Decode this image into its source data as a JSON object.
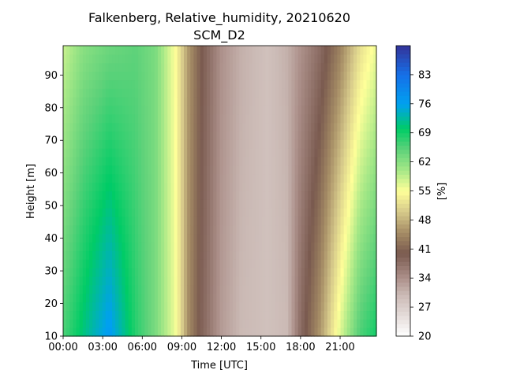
{
  "chart_data": {
    "type": "heatmap",
    "title_line1": "Falkenberg, Relative_humidity, 20210620",
    "title_line2": "SCM_D2",
    "xlabel": "Time [UTC]",
    "ylabel": "Height [m]",
    "colorbar_label": "[%]",
    "x_ticks": [
      "00:00",
      "03:00",
      "06:00",
      "09:00",
      "12:00",
      "15:00",
      "18:00",
      "21:00"
    ],
    "x_tick_hours": [
      0,
      3,
      6,
      9,
      12,
      15,
      18,
      21
    ],
    "xlim_hours": [
      0,
      23.75
    ],
    "y_ticks": [
      10,
      20,
      30,
      40,
      50,
      60,
      70,
      80,
      90
    ],
    "ylim": [
      10,
      99
    ],
    "colorbar_ticks": [
      20,
      27,
      34,
      41,
      48,
      55,
      62,
      69,
      76,
      83
    ],
    "colorbar_range": [
      20,
      90
    ],
    "colormap": [
      {
        "v": 20,
        "c": "#ffffff"
      },
      {
        "v": 30,
        "c": "#cbbab5"
      },
      {
        "v": 34,
        "c": "#ad918b"
      },
      {
        "v": 40,
        "c": "#7a5a4f"
      },
      {
        "v": 45,
        "c": "#a58c65"
      },
      {
        "v": 50,
        "c": "#d6c98a"
      },
      {
        "v": 55,
        "c": "#ffff99"
      },
      {
        "v": 60,
        "c": "#a6e887"
      },
      {
        "v": 65,
        "c": "#5ed27a"
      },
      {
        "v": 70,
        "c": "#00cc66"
      },
      {
        "v": 76,
        "c": "#00a0f0"
      },
      {
        "v": 83,
        "c": "#1670e8"
      },
      {
        "v": 90,
        "c": "#333399"
      }
    ],
    "rh_profile_by_hour": [
      {
        "hour": 0,
        "rh_at_10m": 66,
        "rh_at_99m": 58
      },
      {
        "hour": 1.5,
        "rh_at_10m": 71,
        "rh_at_99m": 62
      },
      {
        "hour": 3.5,
        "rh_at_10m": 77,
        "rh_at_99m": 64
      },
      {
        "hour": 5.5,
        "rh_at_10m": 68,
        "rh_at_99m": 65
      },
      {
        "hour": 7,
        "rh_at_10m": 63,
        "rh_at_99m": 63
      },
      {
        "hour": 8.5,
        "rh_at_10m": 56,
        "rh_at_99m": 55
      },
      {
        "hour": 9.5,
        "rh_at_10m": 45,
        "rh_at_99m": 46
      },
      {
        "hour": 10.5,
        "rh_at_10m": 39,
        "rh_at_99m": 40
      },
      {
        "hour": 12,
        "rh_at_10m": 33,
        "rh_at_99m": 34
      },
      {
        "hour": 13.5,
        "rh_at_10m": 30,
        "rh_at_99m": 31
      },
      {
        "hour": 15.5,
        "rh_at_10m": 29,
        "rh_at_99m": 29
      },
      {
        "hour": 17,
        "rh_at_10m": 30,
        "rh_at_99m": 31
      },
      {
        "hour": 18,
        "rh_at_10m": 38,
        "rh_at_99m": 34
      },
      {
        "hour": 19.5,
        "rh_at_10m": 46,
        "rh_at_99m": 38
      },
      {
        "hour": 21,
        "rh_at_10m": 57,
        "rh_at_99m": 44
      },
      {
        "hour": 22.5,
        "rh_at_10m": 66,
        "rh_at_99m": 52
      },
      {
        "hour": 23.75,
        "rh_at_10m": 69,
        "rh_at_99m": 56
      }
    ]
  }
}
